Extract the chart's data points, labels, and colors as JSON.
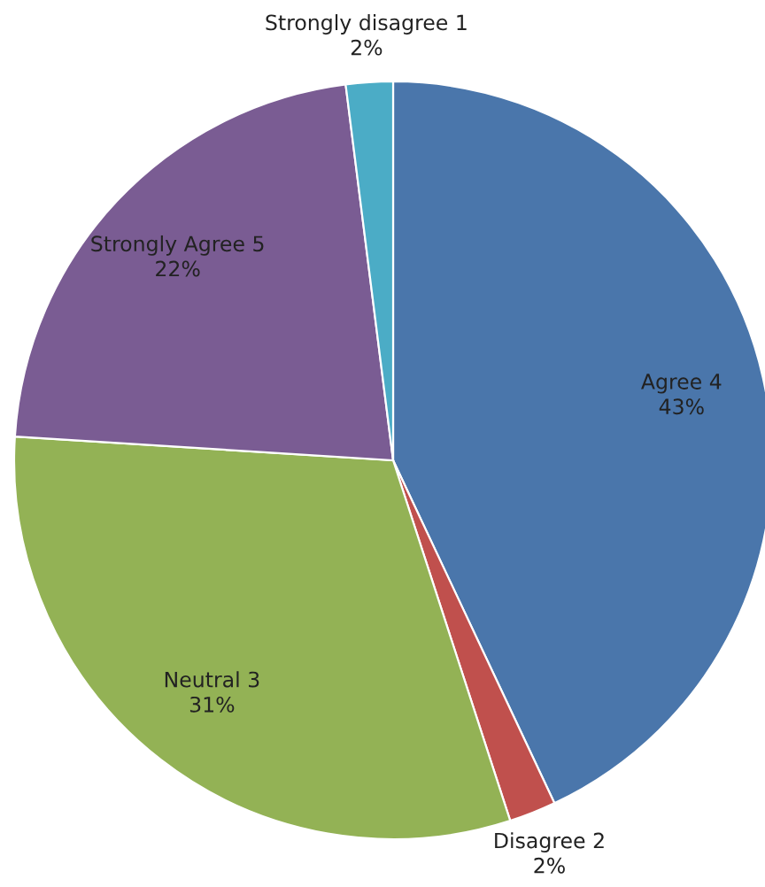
{
  "chart_data": {
    "type": "pie",
    "categories": [
      "Agree 4",
      "Disagree 2",
      "Neutral 3",
      "Strongly Agree 5",
      "Strongly disagree 1"
    ],
    "values": [
      43,
      2,
      31,
      22,
      2
    ],
    "value_labels": [
      "43%",
      "2%",
      "31%",
      "22%",
      "2%"
    ],
    "colors": [
      "#4a76ab",
      "#c0504d",
      "#93b255",
      "#7a5c93",
      "#4bacc6"
    ],
    "legend": false
  }
}
